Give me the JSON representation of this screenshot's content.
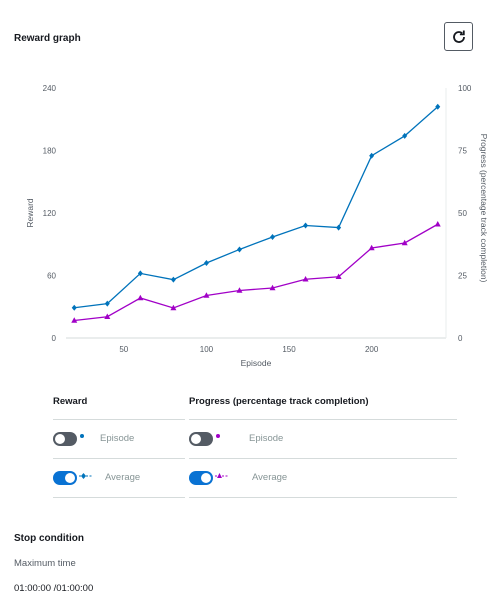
{
  "header": {
    "title": "Reward graph",
    "refresh_icon": "refresh-icon"
  },
  "chart_data": {
    "type": "line",
    "xlabel": "Episode",
    "ylabel": "Reward",
    "y2label": "Progress (percentage track completion)",
    "xlim": [
      15,
      245
    ],
    "ylim": [
      0,
      240
    ],
    "y2lim": [
      0,
      100
    ],
    "xticks": [
      50,
      100,
      150,
      200
    ],
    "yticks": [
      0,
      60,
      120,
      180,
      240
    ],
    "y2ticks": [
      0,
      25,
      50,
      75,
      100
    ],
    "x": [
      20,
      40,
      60,
      80,
      100,
      120,
      140,
      160,
      180,
      200,
      220,
      240
    ],
    "series": [
      {
        "name": "Reward",
        "axis": "left",
        "color": "#0073bb",
        "marker": "diamond",
        "values": [
          29,
          33,
          62,
          56,
          72,
          85,
          97,
          108,
          106,
          175,
          194,
          222
        ]
      },
      {
        "name": "Progress (percentage track completion)",
        "axis": "right",
        "color": "#a100c7",
        "marker": "triangle",
        "values": [
          7,
          8.5,
          16,
          12,
          17,
          19,
          20,
          23.5,
          24.5,
          36,
          38,
          45.5
        ]
      }
    ],
    "grid": false
  },
  "legend": {
    "reward": {
      "header": "Reward",
      "rows": [
        {
          "label": "Episode",
          "toggle": "off"
        },
        {
          "label": "Average",
          "toggle": "on"
        }
      ]
    },
    "progress": {
      "header": "Progress (percentage track completion)",
      "rows": [
        {
          "label": "Episode",
          "toggle": "off"
        },
        {
          "label": "Average",
          "toggle": "on"
        }
      ]
    }
  },
  "stop_condition": {
    "title": "Stop condition",
    "max_time_label": "Maximum time",
    "max_time_value": "01:00:00 /01:00:00"
  }
}
